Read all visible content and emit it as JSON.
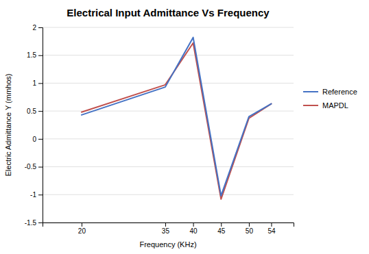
{
  "chart_data": {
    "type": "line",
    "title": "Electrical Input Admittance Vs Frequency",
    "xlabel": "Frequency (KHz)",
    "ylabel": "Electric Admittance Y (mmhos)",
    "x": [
      20,
      35,
      40,
      45,
      50,
      54
    ],
    "series": [
      {
        "name": "Reference",
        "color": "#4472C4",
        "values": [
          0.43,
          0.93,
          1.82,
          -1.02,
          0.4,
          0.63
        ]
      },
      {
        "name": "MAPDL",
        "color": "#C0504D",
        "values": [
          0.48,
          0.97,
          1.72,
          -1.08,
          0.37,
          0.63
        ]
      }
    ],
    "xlim": [
      13,
      58
    ],
    "xticks": [
      20,
      35,
      40,
      45,
      50,
      54
    ],
    "ylim": [
      -1.5,
      2.0
    ],
    "yticks": [
      -1.5,
      -1.0,
      -0.5,
      0.0,
      0.5,
      1.0,
      1.5,
      2.0
    ],
    "grid": true,
    "legend": "right"
  }
}
